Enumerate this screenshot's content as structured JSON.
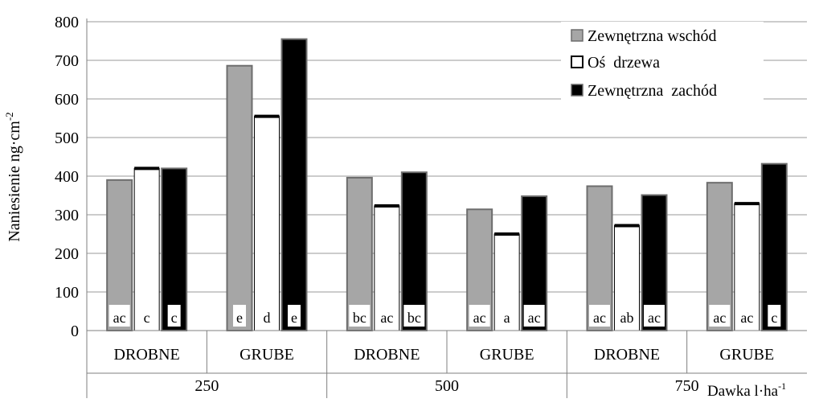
{
  "chart_data": {
    "type": "bar",
    "ylabel": "Naniesienie ng·cm",
    "ylabel_superscript": "-2",
    "xlabel": "Dawka l·ha",
    "xlabel_superscript": "-1",
    "ylim": [
      0,
      800
    ],
    "yticks": [
      "0",
      "100",
      "200",
      "300",
      "400",
      "500",
      "600",
      "700",
      "800"
    ],
    "grid": true,
    "legend_position": "top-right",
    "groups": [
      "250",
      "500",
      "750"
    ],
    "categories": [
      "DROBNE",
      "GRUBE",
      "DROBNE",
      "GRUBE",
      "DROBNE",
      "GRUBE"
    ],
    "series": [
      {
        "name": "Zewnętrzna wschód",
        "color": "#a6a6a6",
        "values": [
          390,
          686,
          396,
          314,
          374,
          383
        ],
        "labels": [
          "ac",
          "e",
          "bc",
          "ac",
          "ac",
          "ac"
        ]
      },
      {
        "name": "Oś  drzewa",
        "color": "#ffffff",
        "values": [
          420,
          555,
          323,
          250,
          272,
          329
        ],
        "labels": [
          "c",
          "d",
          "ac",
          "a",
          "ab",
          "ac"
        ]
      },
      {
        "name": "Zewnętrzna  zachód",
        "color": "#000000",
        "values": [
          420,
          755,
          410,
          348,
          351,
          432
        ],
        "labels": [
          "c",
          "e",
          "bc",
          "ac",
          "ac",
          "c"
        ]
      }
    ]
  }
}
